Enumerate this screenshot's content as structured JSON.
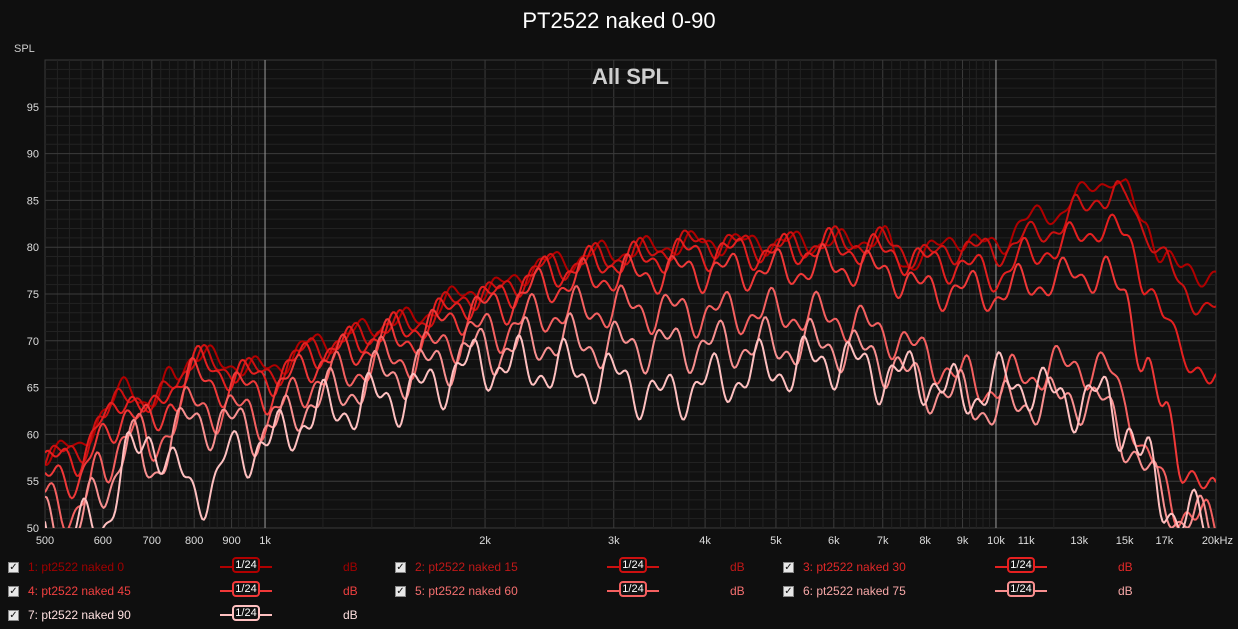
{
  "title": "PT2522 naked 0-90",
  "chart_data": {
    "type": "line",
    "title": "PT2522 naked 0-90",
    "subtitle": "All SPL",
    "ylabel": "SPL",
    "xlabel": "",
    "x_scale": "log",
    "xlim": [
      500,
      20000
    ],
    "ylim": [
      50,
      100
    ],
    "x_ticks": [
      500,
      600,
      700,
      800,
      900,
      1000,
      2000,
      3000,
      4000,
      5000,
      6000,
      7000,
      8000,
      9000,
      10000,
      11000,
      13000,
      15000,
      17000,
      20000
    ],
    "x_tick_labels": [
      "500",
      "600",
      "700",
      "800",
      "900",
      "1k",
      "2k",
      "3k",
      "4k",
      "5k",
      "6k",
      "7k",
      "8k",
      "9k",
      "10k",
      "11k",
      "13k",
      "15k",
      "17k",
      "20kHz"
    ],
    "y_ticks": [
      50,
      55,
      60,
      65,
      70,
      75,
      80,
      85,
      90,
      95
    ],
    "grid": true,
    "legend_position": "bottom",
    "series": [
      {
        "name": "pt2522 naked 0",
        "color": "#b00000",
        "x": [
          500,
          550,
          600,
          650,
          700,
          750,
          800,
          900,
          1000,
          1200,
          1500,
          2000,
          2500,
          3000,
          4000,
          5000,
          6000,
          7000,
          7500,
          8000,
          9000,
          10000,
          11000,
          12000,
          13000,
          14000,
          14500,
          15000,
          16000,
          17000,
          18000,
          20000
        ],
        "y": [
          58,
          58.5,
          62,
          65.5,
          63,
          66.5,
          68.5,
          67.5,
          67,
          70,
          72,
          75.5,
          78.5,
          79.5,
          80.5,
          80.5,
          80.5,
          81,
          78,
          79.5,
          81,
          80,
          83,
          83.5,
          85.5,
          87,
          87.5,
          86,
          82.5,
          79,
          77.5,
          77
        ]
      },
      {
        "name": "pt2522 naked 15",
        "color": "#cc1010",
        "x": [
          500,
          550,
          600,
          650,
          700,
          750,
          800,
          900,
          1000,
          1200,
          1500,
          2000,
          2500,
          3000,
          4000,
          5000,
          6000,
          7000,
          8000,
          9000,
          10000,
          11000,
          12000,
          13000,
          14000,
          14500,
          15000,
          16000,
          17000,
          18000,
          20000
        ],
        "y": [
          57.5,
          58,
          61.5,
          65,
          62.5,
          66,
          68,
          67,
          66.5,
          69.5,
          71.5,
          75,
          78,
          79,
          80.5,
          80,
          80.5,
          80.5,
          79,
          80,
          79.5,
          81,
          82,
          84,
          85.5,
          86,
          85,
          82,
          79,
          75,
          73.5
        ]
      },
      {
        "name": "pt2522 naked 30",
        "color": "#e52020",
        "x": [
          500,
          550,
          600,
          650,
          700,
          750,
          800,
          900,
          1000,
          1200,
          1500,
          2000,
          2500,
          3000,
          4000,
          5000,
          6000,
          7000,
          8000,
          9000,
          10000,
          11000,
          12000,
          13000,
          14000,
          15000,
          16000,
          17000,
          18000,
          20000
        ],
        "y": [
          57,
          57.5,
          61,
          64.5,
          62,
          65.5,
          67.5,
          66.5,
          66,
          69,
          71,
          74.5,
          77.5,
          78.5,
          79.5,
          79.5,
          80,
          79.5,
          78.5,
          78,
          77,
          79,
          80,
          81,
          82.5,
          81,
          77,
          72,
          69,
          65
        ]
      },
      {
        "name": "pt2522 naked 45",
        "color": "#f03838",
        "x": [
          500,
          550,
          600,
          650,
          700,
          750,
          800,
          900,
          1000,
          1200,
          1500,
          2000,
          2500,
          3000,
          4000,
          5000,
          6000,
          7000,
          8000,
          9000,
          10000,
          11000,
          12000,
          13000,
          14000,
          15000,
          16000,
          17000,
          18000,
          20000
        ],
        "y": [
          55,
          55.5,
          59,
          63,
          60.5,
          64,
          66,
          65,
          64.5,
          68,
          70,
          73.5,
          76,
          77,
          77.5,
          77.5,
          78,
          77.5,
          75.5,
          75.5,
          75,
          76,
          76.5,
          77,
          77.5,
          74.5,
          68,
          62,
          57,
          53
        ]
      },
      {
        "name": "pt2522 naked 60",
        "color": "#f56060",
        "x": [
          500,
          550,
          600,
          650,
          700,
          750,
          800,
          900,
          1000,
          1200,
          1500,
          2000,
          2500,
          3000,
          4000,
          5000,
          6000,
          7000,
          8000,
          9000,
          10000,
          11000,
          12000,
          13000,
          14000,
          15000,
          16000,
          17000,
          18000,
          20000
        ],
        "y": [
          53,
          52,
          56,
          61,
          58,
          62,
          63,
          62.5,
          62,
          66,
          68,
          71,
          73,
          73.5,
          73,
          73,
          72.5,
          71,
          68.5,
          66,
          65,
          66.5,
          67,
          67.5,
          67,
          64,
          58,
          54,
          52,
          50
        ]
      },
      {
        "name": "pt2522 naked 75",
        "color": "#f99090",
        "x": [
          500,
          550,
          600,
          650,
          700,
          750,
          800,
          900,
          1000,
          1200,
          1500,
          2000,
          2500,
          3000,
          4000,
          5000,
          6000,
          7000,
          8000,
          9000,
          10000,
          11000,
          12000,
          13000,
          14000,
          15000,
          16000,
          17000,
          18000,
          20000
        ],
        "y": [
          51,
          50,
          54,
          59,
          56,
          60,
          61.5,
          61,
          60.5,
          64,
          66.5,
          69,
          70,
          69.5,
          69.5,
          69.5,
          69.5,
          68,
          65,
          64,
          62.5,
          63.5,
          63.5,
          64,
          63,
          60,
          56,
          53,
          51,
          50
        ]
      },
      {
        "name": "pt2522 naked 90",
        "color": "#ffc0c0",
        "x": [
          500,
          550,
          600,
          650,
          700,
          750,
          800,
          850,
          900,
          1000,
          1200,
          1500,
          2000,
          2500,
          3000,
          3500,
          4000,
          5000,
          6000,
          7000,
          8000,
          9000,
          10000,
          11000,
          12000,
          13000,
          14000,
          15000,
          16000,
          17000,
          18000,
          20000
        ],
        "y": [
          50,
          49.5,
          51,
          57,
          60,
          56,
          54,
          54.5,
          58,
          59,
          62.5,
          64,
          67.5,
          67,
          66,
          64,
          65.5,
          67,
          68,
          66.5,
          66,
          64,
          65.5,
          65.5,
          64,
          63.5,
          64,
          61,
          57,
          53,
          51,
          50
        ]
      }
    ]
  },
  "legend": {
    "smoothing": "1/24",
    "unit": "dB",
    "items": [
      {
        "label": "1: pt2522 naked 0",
        "color": "#b00000",
        "text_color": "#a00000"
      },
      {
        "label": "2: pt2522 naked 15",
        "color": "#cc1010",
        "text_color": "#c01818"
      },
      {
        "label": "3: pt2522 naked 30",
        "color": "#e52020",
        "text_color": "#e02828"
      },
      {
        "label": "4: pt2522 naked 45",
        "color": "#f03838",
        "text_color": "#f04040"
      },
      {
        "label": "5: pt2522 naked 60",
        "color": "#f56060",
        "text_color": "#f57070"
      },
      {
        "label": "6: pt2522 naked 75",
        "color": "#f99090",
        "text_color": "#f8a8a8"
      },
      {
        "label": "7: pt2522 naked 90",
        "color": "#ffc0c0",
        "text_color": "#ffe0e0"
      }
    ]
  }
}
